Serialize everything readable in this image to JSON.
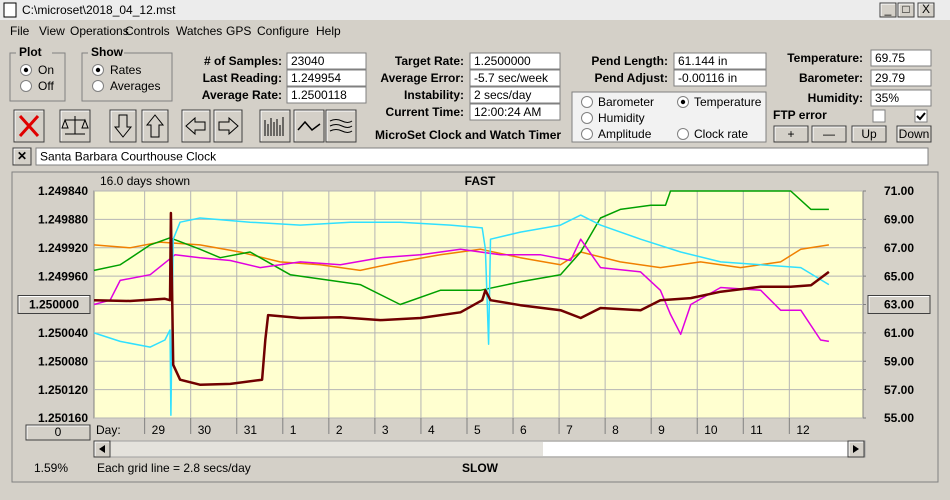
{
  "window": {
    "title": "C:\\microset\\2018_04_12.mst",
    "menu": [
      "File",
      "View",
      "Operations",
      "Controls",
      "Watches",
      "GPS",
      "Configure",
      "Help"
    ]
  },
  "plot_group": {
    "title": "Plot",
    "options": [
      "On",
      "Off"
    ],
    "selected": 0
  },
  "show_group": {
    "title": "Show",
    "options": [
      "Rates",
      "Averages"
    ],
    "selected": 0
  },
  "stats": [
    {
      "label": "# of Samples:",
      "value": "23040"
    },
    {
      "label": "Last Reading:",
      "value": "1.249954"
    },
    {
      "label": "Average Rate:",
      "value": "1.2500118"
    }
  ],
  "timing": [
    {
      "label": "Target Rate:",
      "value": "1.2500000"
    },
    {
      "label": "Average Error:",
      "value": "-5.7 sec/week"
    },
    {
      "label": "Instability:",
      "value": "2 secs/day"
    },
    {
      "label": "Current Time:",
      "value": "12:00:24 AM"
    }
  ],
  "pendulum": [
    {
      "label": "Pend Length:",
      "value": "61.144 in"
    },
    {
      "label": "Pend Adjust:",
      "value": "-0.00116 in"
    }
  ],
  "environment": [
    {
      "label": "Temperature:",
      "value": "69.75"
    },
    {
      "label": "Barometer:",
      "value": "29.79"
    },
    {
      "label": "Humidity:",
      "value": "35%"
    }
  ],
  "ftp_label": "FTP error",
  "adjust_buttons": [
    "+",
    "—",
    "Up",
    "Down"
  ],
  "app_name": "MicroSet Clock and Watch Timer",
  "clock_name": "Santa Barbara Courthouse Clock",
  "chart_data": {
    "type": "line",
    "days_shown": "16.0 days shown",
    "top_label": "FAST",
    "bottom_label": "SLOW",
    "x_label": "Day:",
    "grid_note": "Each grid line = 2.8 secs/day",
    "zoom_button": "0",
    "percent": "1.59%",
    "selected": 1,
    "grid": true,
    "xlim": [
      0,
      16.7
    ],
    "xticks": [
      {
        "value": 1.1,
        "label": "29"
      },
      {
        "value": 2.1,
        "label": "30"
      },
      {
        "value": 3.1,
        "label": "31"
      },
      {
        "value": 4.1,
        "label": "1"
      },
      {
        "value": 5.1,
        "label": "2"
      },
      {
        "value": 6.1,
        "label": "3"
      },
      {
        "value": 7.1,
        "label": "4"
      },
      {
        "value": 8.1,
        "label": "5"
      },
      {
        "value": 9.1,
        "label": "6"
      },
      {
        "value": 10.1,
        "label": "7"
      },
      {
        "value": 11.1,
        "label": "8"
      },
      {
        "value": 12.1,
        "label": "9"
      },
      {
        "value": 13.1,
        "label": "10"
      },
      {
        "value": 14.1,
        "label": "11"
      },
      {
        "value": 15.1,
        "label": "12"
      }
    ],
    "ylim": [
      1.25016,
      1.24984
    ],
    "yticks": [
      {
        "value": 1.24984,
        "label": "1.249840"
      },
      {
        "value": 1.24988,
        "label": "1.249880"
      },
      {
        "value": 1.24992,
        "label": "1.249920"
      },
      {
        "value": 1.24996,
        "label": "1.249960"
      },
      {
        "value": 1.25,
        "label": "1.250000"
      },
      {
        "value": 1.25004,
        "label": "1.250040"
      },
      {
        "value": 1.25008,
        "label": "1.250080"
      },
      {
        "value": 1.25012,
        "label": "1.250120"
      },
      {
        "value": 1.25016,
        "label": "1.250160"
      }
    ],
    "y2lim": [
      55,
      71
    ],
    "y2ticks": [
      {
        "value": 71,
        "label": "71.00"
      },
      {
        "value": 69,
        "label": "69.00"
      },
      {
        "value": 67,
        "label": "67.00"
      },
      {
        "value": 65,
        "label": "65.00"
      },
      {
        "value": 63,
        "label": "63.00"
      },
      {
        "value": 61,
        "label": "61.00"
      },
      {
        "value": 59,
        "label": "59.00"
      },
      {
        "value": 57,
        "label": "57.00"
      },
      {
        "value": 55,
        "label": "55.00"
      }
    ],
    "series": [
      {
        "name": "Barometer",
        "color": "#f08000",
        "axis": "y2",
        "x": [
          0,
          0.78,
          1.43,
          2.3,
          3.17,
          4.04,
          4.91,
          5.78,
          6.65,
          7.52,
          8.39,
          9.26,
          10.13,
          10.57,
          11.43,
          12.3,
          13.17,
          14.04,
          14.91,
          15.35,
          15.96
        ],
        "values": [
          67.2,
          67.0,
          67.4,
          67.2,
          66.7,
          66.0,
          65.8,
          65.4,
          66.0,
          66.5,
          66.9,
          66.3,
          65.8,
          66.7,
          66.0,
          65.6,
          66.0,
          65.6,
          66.0,
          66.9,
          67.2
        ]
      },
      {
        "name": "Temperature",
        "color": "#00a000",
        "axis": "y2",
        "x": [
          0,
          0.57,
          1.22,
          1.65,
          2.3,
          2.74,
          3.39,
          4.26,
          5.13,
          5.78,
          6.65,
          7.52,
          8.39,
          9.26,
          10.13,
          10.57,
          11,
          11.43,
          12.09,
          12.41,
          12.52,
          13.17,
          15.13,
          15.57,
          15.96
        ],
        "values": [
          65.4,
          65.8,
          67.2,
          67.7,
          66.9,
          66.3,
          66.7,
          65.1,
          64.7,
          64.4,
          63.0,
          64.0,
          64.0,
          64.6,
          65.1,
          66.7,
          69.1,
          69.7,
          70.0,
          70.0,
          71.0,
          71.0,
          71.0,
          69.7,
          69.7
        ]
      },
      {
        "name": "Humidity",
        "color": "#e000e0",
        "axis": "y2",
        "x": [
          0,
          0.35,
          0.57,
          1.22,
          1.76,
          2.3,
          2.96,
          3.61,
          4.48,
          5.35,
          6.22,
          7.09,
          7.96,
          8.83,
          9.7,
          10.35,
          10.57,
          11,
          11.87,
          12.3,
          12.52,
          12.74,
          12.96,
          13.61,
          14.48,
          14.91,
          15.35,
          15.78,
          15.96
        ],
        "values": [
          63.0,
          63.3,
          64.7,
          65.1,
          66.5,
          66.3,
          66.1,
          65.6,
          66.0,
          65.8,
          66.3,
          66.5,
          66.9,
          66.5,
          66.5,
          66.1,
          67.6,
          65.6,
          65.3,
          64.0,
          62.3,
          60.9,
          63.0,
          64.2,
          64.0,
          62.6,
          62.6,
          60.5,
          60.4
        ]
      },
      {
        "name": "Amplitude",
        "color": "#30e0ff",
        "axis": "y2",
        "x": [
          0,
          0.57,
          1.22,
          1.54,
          1.65,
          1.67,
          1.72,
          1.87,
          2.3,
          3.39,
          4.48,
          5.57,
          6.65,
          7.74,
          8.43,
          8.5,
          8.57,
          8.61,
          9.26,
          10.13,
          10.57,
          11,
          11.87,
          12.74,
          13.61,
          14.48,
          15.35,
          15.96
        ],
        "values": [
          61.0,
          60.4,
          60.0,
          60.5,
          61.2,
          55.2,
          67.6,
          68.8,
          69.1,
          68.8,
          68.6,
          68.8,
          68.8,
          68.6,
          68.4,
          66.9,
          60.2,
          67.6,
          68.1,
          68.6,
          69.3,
          68.6,
          67.6,
          66.7,
          66.0,
          65.8,
          65.6,
          64.4
        ]
      },
      {
        "name": "Clock rate",
        "color": "#700000",
        "x": [
          0,
          0.78,
          1.54,
          1.65,
          1.67,
          1.72,
          1.87,
          2.3,
          2.96,
          3.65,
          3.72,
          3.78,
          4.48,
          5.35,
          6.22,
          7.09,
          7.96,
          8.43,
          8.5,
          8.61,
          9.26,
          10.13,
          10.57,
          11,
          11.87,
          12.3,
          12.96,
          13.61,
          14.48,
          15.13,
          15.57,
          15.96
        ],
        "values": [
          1.249994,
          1.249995,
          1.249992,
          1.249994,
          1.249871,
          1.250085,
          1.250106,
          1.250113,
          1.250112,
          1.250106,
          1.25005,
          1.250015,
          1.250019,
          1.250018,
          1.250022,
          1.250019,
          1.250011,
          1.249994,
          1.24998,
          1.249994,
          1.250001,
          1.250008,
          1.250019,
          1.250005,
          1.250008,
          1.249994,
          1.249991,
          1.249982,
          1.249975,
          1.249975,
          1.249973,
          1.249954
        ]
      }
    ]
  }
}
